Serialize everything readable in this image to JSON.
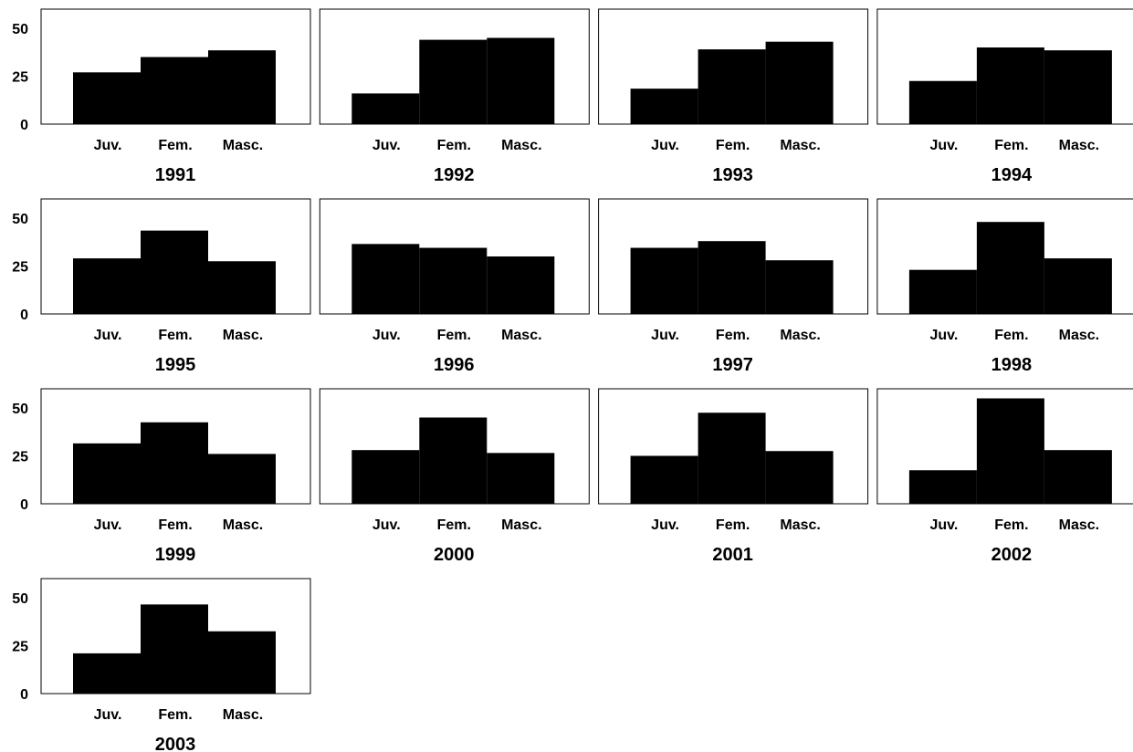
{
  "chart_data": [
    {
      "type": "bar",
      "title": "1991",
      "categories": [
        "Juv.",
        "Fem.",
        "Masc."
      ],
      "values": [
        27,
        35,
        38.5
      ],
      "yticks": [
        "0",
        "25",
        "50"
      ],
      "ylim": [
        0,
        60
      ]
    },
    {
      "type": "bar",
      "title": "1992",
      "categories": [
        "Juv.",
        "Fem.",
        "Masc."
      ],
      "values": [
        16,
        44,
        45
      ],
      "yticks": [
        "0",
        "25",
        "50"
      ],
      "ylim": [
        0,
        60
      ]
    },
    {
      "type": "bar",
      "title": "1993",
      "categories": [
        "Juv.",
        "Fem.",
        "Masc."
      ],
      "values": [
        18.5,
        39,
        43
      ],
      "yticks": [
        "0",
        "25",
        "50"
      ],
      "ylim": [
        0,
        60
      ]
    },
    {
      "type": "bar",
      "title": "1994",
      "categories": [
        "Juv.",
        "Fem.",
        "Masc."
      ],
      "values": [
        22.5,
        40,
        38.5
      ],
      "yticks": [
        "0",
        "25",
        "50"
      ],
      "ylim": [
        0,
        60
      ]
    },
    {
      "type": "bar",
      "title": "1995",
      "categories": [
        "Juv.",
        "Fem.",
        "Masc."
      ],
      "values": [
        29,
        43.5,
        27.5
      ],
      "yticks": [
        "0",
        "25",
        "50"
      ],
      "ylim": [
        0,
        60
      ]
    },
    {
      "type": "bar",
      "title": "1996",
      "categories": [
        "Juv.",
        "Fem.",
        "Masc."
      ],
      "values": [
        36.5,
        34.5,
        30
      ],
      "yticks": [
        "0",
        "25",
        "50"
      ],
      "ylim": [
        0,
        60
      ]
    },
    {
      "type": "bar",
      "title": "1997",
      "categories": [
        "Juv.",
        "Fem.",
        "Masc."
      ],
      "values": [
        34.5,
        38,
        28
      ],
      "yticks": [
        "0",
        "25",
        "50"
      ],
      "ylim": [
        0,
        60
      ]
    },
    {
      "type": "bar",
      "title": "1998",
      "categories": [
        "Juv.",
        "Fem.",
        "Masc."
      ],
      "values": [
        23,
        48,
        29
      ],
      "yticks": [
        "0",
        "25",
        "50"
      ],
      "ylim": [
        0,
        60
      ]
    },
    {
      "type": "bar",
      "title": "1999",
      "categories": [
        "Juv.",
        "Fem.",
        "Masc."
      ],
      "values": [
        31.5,
        42.5,
        26
      ],
      "yticks": [
        "0",
        "25",
        "50"
      ],
      "ylim": [
        0,
        60
      ]
    },
    {
      "type": "bar",
      "title": "2000",
      "categories": [
        "Juv.",
        "Fem.",
        "Masc."
      ],
      "values": [
        28,
        45,
        26.5
      ],
      "yticks": [
        "0",
        "25",
        "50"
      ],
      "ylim": [
        0,
        60
      ]
    },
    {
      "type": "bar",
      "title": "2001",
      "categories": [
        "Juv.",
        "Fem.",
        "Masc."
      ],
      "values": [
        25,
        47.5,
        27.5
      ],
      "yticks": [
        "0",
        "25",
        "50"
      ],
      "ylim": [
        0,
        60
      ]
    },
    {
      "type": "bar",
      "title": "2002",
      "categories": [
        "Juv.",
        "Fem.",
        "Masc."
      ],
      "values": [
        17.5,
        55,
        28
      ],
      "yticks": [
        "0",
        "25",
        "50"
      ],
      "ylim": [
        0,
        60
      ]
    },
    {
      "type": "bar",
      "title": "2003",
      "categories": [
        "Juv.",
        "Fem.",
        "Masc."
      ],
      "values": [
        21,
        46.5,
        32.5
      ],
      "yticks": [
        "0",
        "25",
        "50"
      ],
      "ylim": [
        0,
        60
      ]
    }
  ],
  "colors": {
    "bar": "#000000",
    "frame": "#000000",
    "background": "#ffffff"
  }
}
